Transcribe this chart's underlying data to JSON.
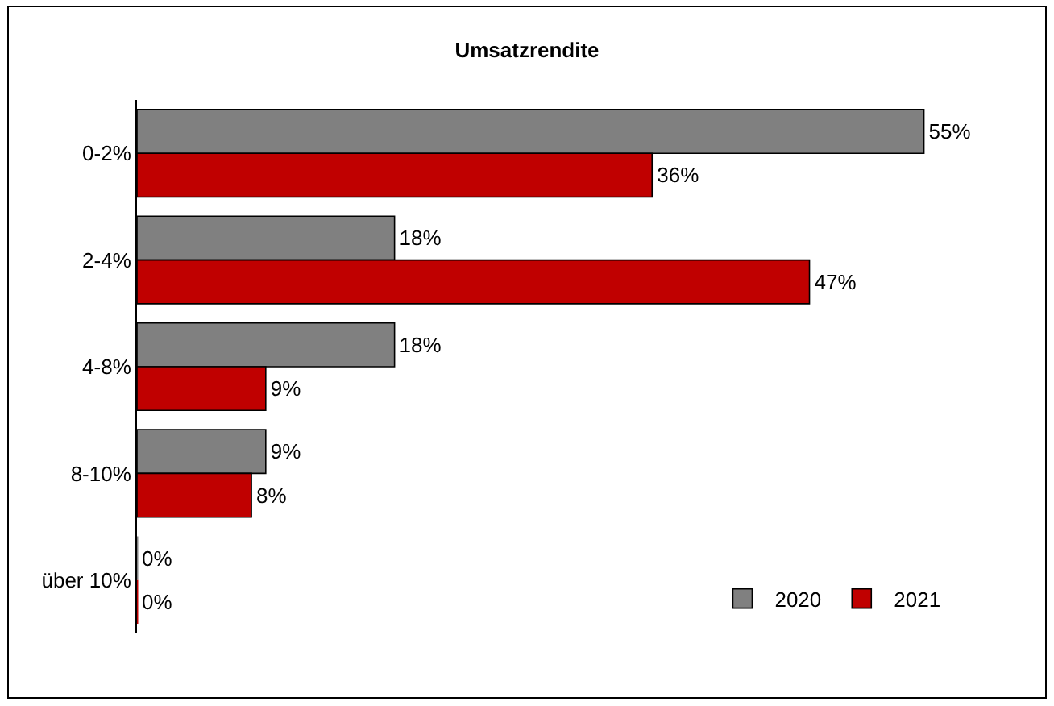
{
  "chart_data": {
    "type": "bar",
    "orientation": "horizontal",
    "title": "Umsatzrendite",
    "categories": [
      "0-2%",
      "2-4%",
      "4-8%",
      "8-10%",
      "über 10%"
    ],
    "series": [
      {
        "name": "2020",
        "color": "#808080",
        "values": [
          55,
          18,
          18,
          9,
          0
        ],
        "value_labels": [
          "55%",
          "18%",
          "18%",
          "9%",
          "0%"
        ]
      },
      {
        "name": "2021",
        "color": "#c00000",
        "values": [
          36,
          47,
          9,
          8,
          0
        ],
        "value_labels": [
          "36%",
          "47%",
          "9%",
          "8%",
          "0%"
        ]
      }
    ],
    "legend": "bottom right"
  }
}
